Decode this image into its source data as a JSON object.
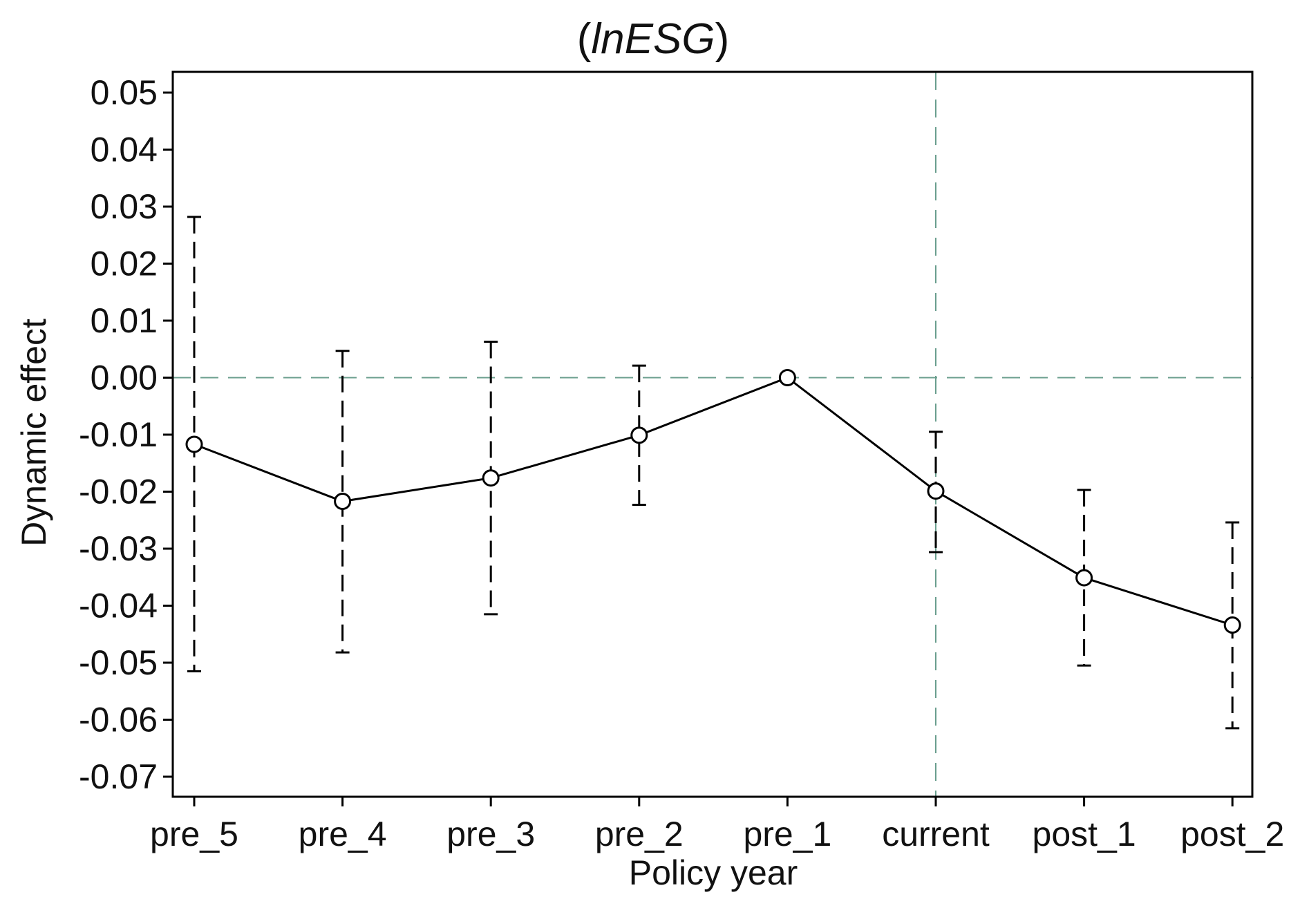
{
  "chart_data": {
    "type": "line",
    "title_open": "(",
    "title_italic": "lnESG",
    "title_close": ")",
    "xlabel": "Policy year",
    "ylabel": "Dynamic effect",
    "categories": [
      "pre_5",
      "pre_4",
      "pre_3",
      "pre_2",
      "pre_1",
      "current",
      "post_1",
      "post_2"
    ],
    "series": [
      {
        "values": [
          -0.0117,
          -0.0217,
          -0.0176,
          -0.0101,
          0.0,
          -0.0199,
          -0.0351,
          -0.0434
        ],
        "ci_upper": [
          0.0282,
          0.0047,
          0.0063,
          0.0021,
          0.0,
          -0.0095,
          -0.0197,
          -0.0254
        ],
        "ci_lower": [
          -0.0515,
          -0.0482,
          -0.0415,
          -0.0223,
          0.0,
          -0.0306,
          -0.0505,
          -0.0615
        ]
      }
    ],
    "ylim": [
      -0.0735,
      0.0535
    ],
    "yticks": [
      0.05,
      0.04,
      0.03,
      0.02,
      0.01,
      0.0,
      -0.01,
      -0.02,
      -0.03,
      -0.04,
      -0.05,
      -0.06,
      -0.07
    ],
    "ytick_labels": [
      "0.05",
      "0.04",
      "0.03",
      "0.02",
      "0.01",
      "0.00",
      "-0.01",
      "-0.02",
      "-0.03",
      "-0.04",
      "-0.05",
      "-0.06",
      "-0.07"
    ],
    "reference_lines": {
      "horizontal_y": 0.0,
      "vertical_x": "current"
    },
    "grid": false,
    "colors": {
      "series": "#000000",
      "reference": "#6a9e8e"
    }
  }
}
